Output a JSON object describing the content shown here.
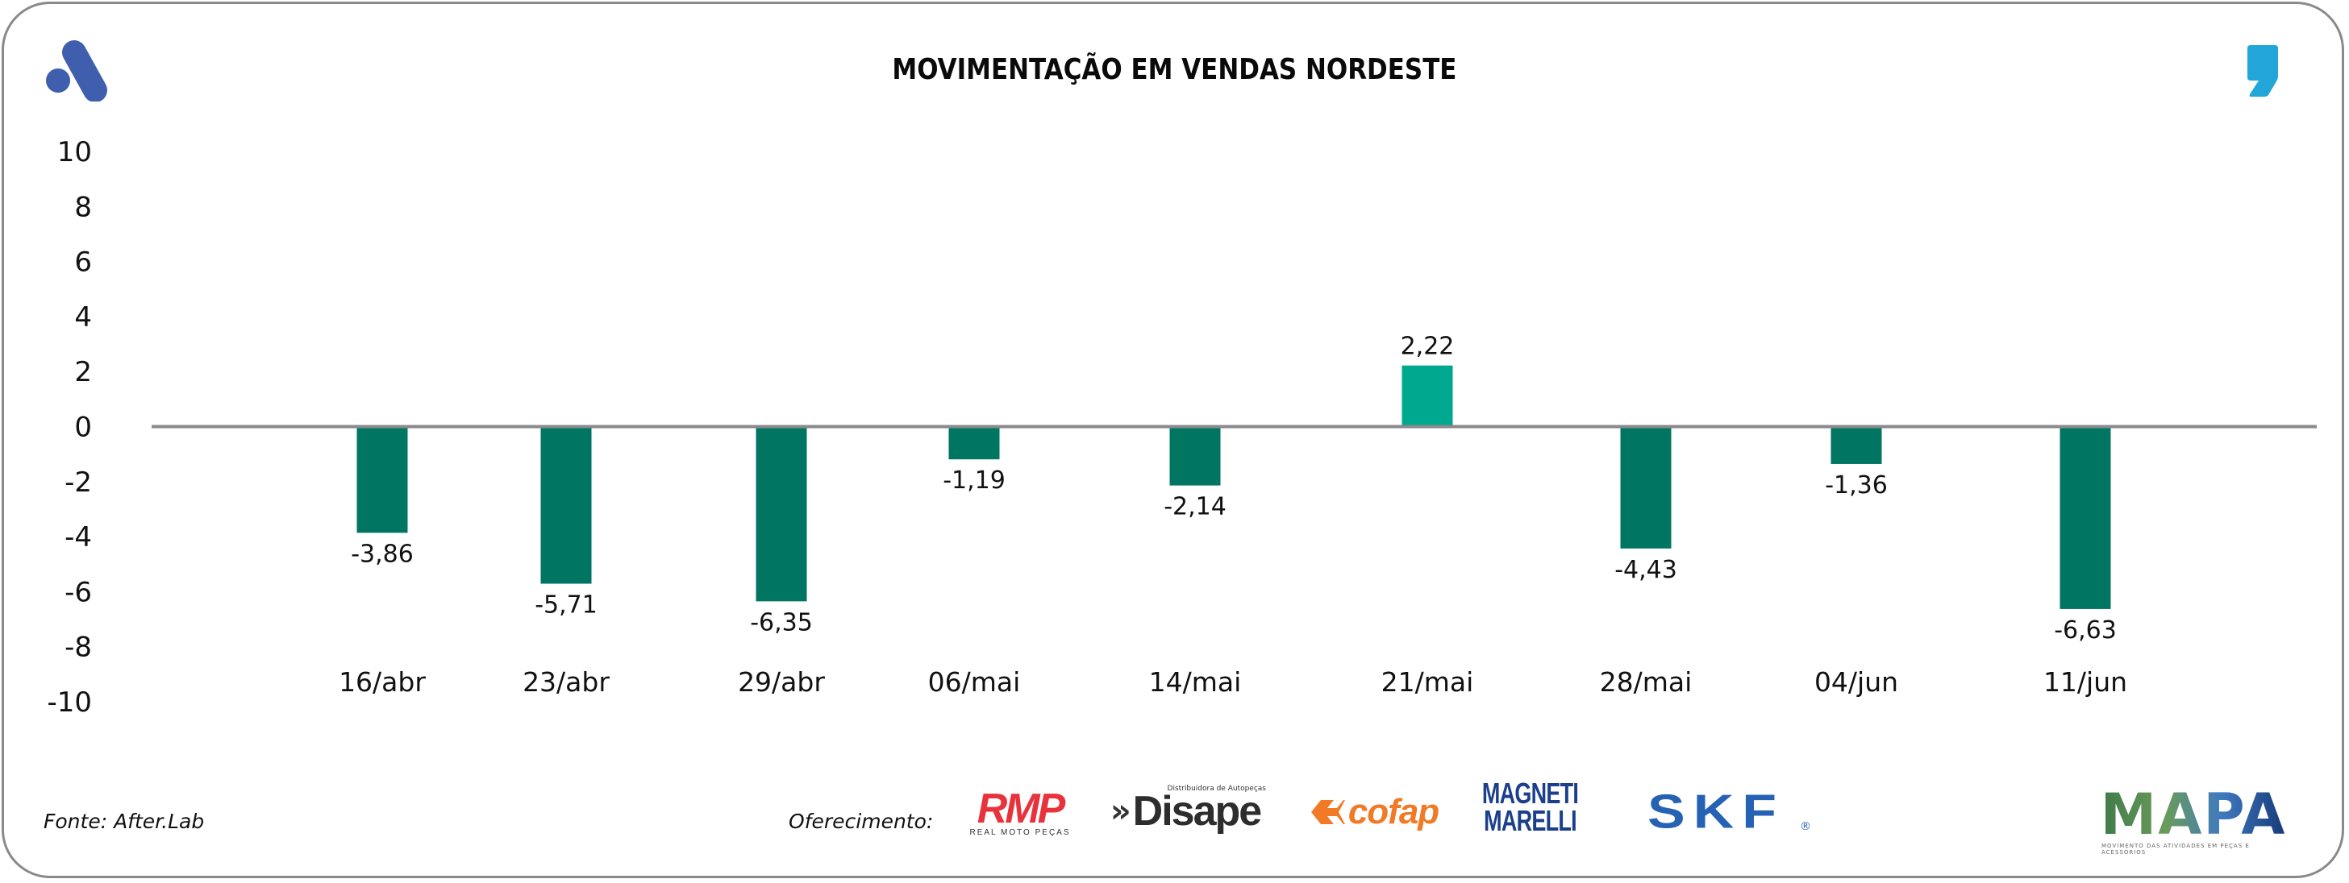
{
  "header": {
    "title": "MOVIMENTAÇÃO EM VENDAS NORDESTE",
    "left_logo_icon": "after-lab-logo-icon",
    "right_logo_icon": "comma-logo-icon"
  },
  "colors": {
    "negative_bar": "#007562",
    "positive_bar": "#00A88F",
    "zero_line": "#8a8a8c",
    "logo_blue": "#3F5FAE",
    "comma_blue": "#22A5D8"
  },
  "chart_data": {
    "type": "bar",
    "title": "MOVIMENTAÇÃO EM VENDAS NORDESTE",
    "xlabel": "",
    "ylabel": "",
    "categories": [
      "16/abr",
      "23/abr",
      "29/abr",
      "06/mai",
      "14/mai",
      "21/mai",
      "28/mai",
      "04/jun",
      "11/jun"
    ],
    "values": [
      -3.86,
      -5.71,
      -6.35,
      -1.19,
      -2.14,
      2.22,
      -4.43,
      -1.36,
      -6.63
    ],
    "value_labels": [
      "-3,86",
      "-5,71",
      "-6,35",
      "-1,19",
      "-2,14",
      "2,22",
      "-4,43",
      "-1,36",
      "-6,63"
    ],
    "ylim": [
      -10,
      10
    ],
    "yticks": [
      10,
      8,
      6,
      4,
      2,
      0,
      -2,
      -4,
      -6,
      -8,
      -10
    ],
    "ytick_labels": [
      "10",
      "8",
      "6",
      "4",
      "2",
      "0",
      "-2",
      "-4",
      "-6",
      "-8",
      "-10"
    ],
    "grid": false,
    "legend": "none"
  },
  "footer": {
    "source": "Fonte: After.Lab",
    "sponsor_label": "Oferecimento:",
    "sponsors": [
      {
        "name": "RMP",
        "text": "RMP",
        "subtext": "REAL MOTO PEÇAS"
      },
      {
        "name": "Disape",
        "text": "Disape",
        "subtext": "Distribuidora de Autopeças"
      },
      {
        "name": "Cofap",
        "text": "cofap"
      },
      {
        "name": "Magneti Marelli",
        "line1": "MAGNETI",
        "line2": "MARELLI"
      },
      {
        "name": "SKF",
        "text": "SKF",
        "reg": "®"
      }
    ],
    "mapa": {
      "text": "MAPA",
      "subtext": "MOVIMENTO DAS ATIVIDADES EM PEÇAS E ACESSÓRIOS"
    }
  }
}
